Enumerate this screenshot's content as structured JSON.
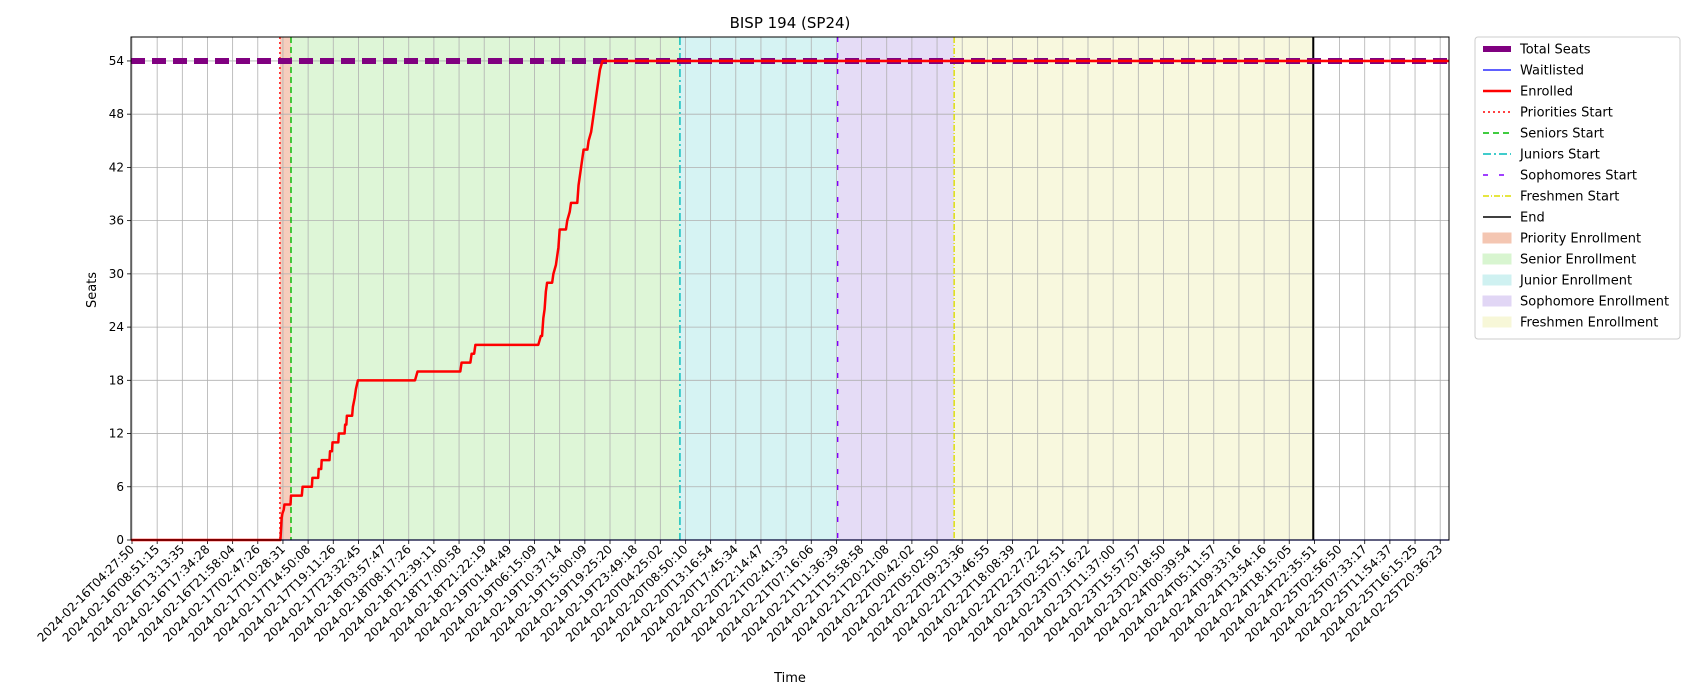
{
  "chart_data": {
    "type": "line",
    "title": "BISP 194 (SP24)",
    "xlabel": "Time",
    "ylabel": "Seats",
    "ylim": [
      0,
      56.7
    ],
    "yticks": [
      0,
      6,
      12,
      18,
      24,
      30,
      36,
      42,
      48,
      54
    ],
    "grid": true,
    "legend_position": "outside-right",
    "xticks": [
      "2024-02-16T04:27:50",
      "2024-02-16T08:51:15",
      "2024-02-16T13:13:35",
      "2024-02-16T17:34:28",
      "2024-02-16T21:58:04",
      "2024-02-17T02:47:26",
      "2024-02-17T10:28:31",
      "2024-02-17T14:50:08",
      "2024-02-17T19:11:26",
      "2024-02-17T23:32:45",
      "2024-02-18T03:57:47",
      "2024-02-18T08:17:26",
      "2024-02-18T12:39:11",
      "2024-02-18T17:00:58",
      "2024-02-18T21:22:19",
      "2024-02-19T01:44:49",
      "2024-02-19T06:15:09",
      "2024-02-19T10:37:14",
      "2024-02-19T15:00:09",
      "2024-02-19T19:25:20",
      "2024-02-19T23:49:18",
      "2024-02-20T04:25:02",
      "2024-02-20T08:50:10",
      "2024-02-20T13:16:54",
      "2024-02-20T17:45:34",
      "2024-02-20T22:14:47",
      "2024-02-21T02:41:33",
      "2024-02-21T07:16:06",
      "2024-02-21T11:36:39",
      "2024-02-21T15:58:58",
      "2024-02-21T20:21:08",
      "2024-02-22T00:42:02",
      "2024-02-22T05:02:50",
      "2024-02-22T09:23:36",
      "2024-02-22T13:46:55",
      "2024-02-22T18:08:39",
      "2024-02-22T22:27:22",
      "2024-02-23T02:52:51",
      "2024-02-23T07:16:22",
      "2024-02-23T11:37:00",
      "2024-02-23T15:57:57",
      "2024-02-23T20:18:50",
      "2024-02-24T00:39:54",
      "2024-02-24T05:11:57",
      "2024-02-24T09:33:16",
      "2024-02-24T13:54:16",
      "2024-02-24T18:15:05",
      "2024-02-24T22:35:51",
      "2024-02-25T02:56:50",
      "2024-02-25T07:33:17",
      "2024-02-25T11:54:37",
      "2024-02-25T16:15:25",
      "2024-02-25T20:36:23"
    ],
    "xrange_index": [
      -0.04,
      52.35
    ],
    "series": [
      {
        "name": "Total Seats",
        "color": "#800080",
        "style": "dashed-thick",
        "points": [
          [
            -0.04,
            54
          ],
          [
            52.35,
            54
          ]
        ]
      },
      {
        "name": "Waitlisted",
        "color": "#0000ff",
        "style": "solid-thin",
        "points": [
          [
            -0.04,
            0
          ],
          [
            52.35,
            0
          ]
        ]
      },
      {
        "name": "Enrolled",
        "color": "#ff0000",
        "style": "solid-thick",
        "points": [
          [
            -0.04,
            0
          ],
          [
            5.9,
            0
          ],
          [
            5.95,
            2.5
          ],
          [
            5.98,
            3
          ],
          [
            6.03,
            3.4
          ],
          [
            6.06,
            4
          ],
          [
            6.3,
            4
          ],
          [
            6.32,
            5
          ],
          [
            6.75,
            5
          ],
          [
            6.78,
            6
          ],
          [
            7.15,
            6
          ],
          [
            7.17,
            7
          ],
          [
            7.4,
            7
          ],
          [
            7.42,
            8
          ],
          [
            7.52,
            8
          ],
          [
            7.54,
            9
          ],
          [
            7.85,
            9
          ],
          [
            7.87,
            10
          ],
          [
            7.95,
            10
          ],
          [
            7.97,
            11
          ],
          [
            8.2,
            11
          ],
          [
            8.22,
            12
          ],
          [
            8.45,
            12
          ],
          [
            8.47,
            13
          ],
          [
            8.52,
            13
          ],
          [
            8.54,
            14
          ],
          [
            8.75,
            14
          ],
          [
            8.78,
            15
          ],
          [
            8.85,
            16
          ],
          [
            8.9,
            17
          ],
          [
            8.98,
            18
          ],
          [
            11.25,
            18
          ],
          [
            11.35,
            19
          ],
          [
            13.05,
            19
          ],
          [
            13.1,
            20
          ],
          [
            13.45,
            20
          ],
          [
            13.5,
            21
          ],
          [
            13.6,
            21
          ],
          [
            13.65,
            22
          ],
          [
            16.15,
            22
          ],
          [
            16.25,
            23
          ],
          [
            16.3,
            23
          ],
          [
            16.35,
            25
          ],
          [
            16.4,
            26
          ],
          [
            16.45,
            28
          ],
          [
            16.5,
            29
          ],
          [
            16.7,
            29
          ],
          [
            16.75,
            30
          ],
          [
            16.85,
            31
          ],
          [
            16.95,
            33
          ],
          [
            17.0,
            35
          ],
          [
            17.25,
            35
          ],
          [
            17.3,
            36
          ],
          [
            17.4,
            37
          ],
          [
            17.45,
            38
          ],
          [
            17.7,
            38
          ],
          [
            17.75,
            40
          ],
          [
            17.85,
            42
          ],
          [
            17.95,
            44
          ],
          [
            18.1,
            44
          ],
          [
            18.15,
            45
          ],
          [
            18.25,
            46
          ],
          [
            18.35,
            48
          ],
          [
            18.45,
            50
          ],
          [
            18.55,
            52
          ],
          [
            18.6,
            53
          ],
          [
            18.7,
            54
          ],
          [
            52.35,
            54
          ]
        ]
      }
    ],
    "markers": [
      {
        "name": "Priorities Start",
        "color": "#ff0000",
        "style": "dotted",
        "x_index": 5.88
      },
      {
        "name": "Seniors Start",
        "color": "#00bb00",
        "style": "dashed",
        "x_index": 6.32
      },
      {
        "name": "Juniors Start",
        "color": "#00bbbb",
        "style": "dashdot",
        "x_index": 21.78
      },
      {
        "name": "Sophomores Start",
        "color": "#8000ff",
        "style": "loosedash",
        "x_index": 28.05
      },
      {
        "name": "Freshmen Start",
        "color": "#dddd00",
        "style": "dashdot-small",
        "x_index": 32.68
      },
      {
        "name": "End",
        "color": "#000000",
        "style": "solid",
        "x_index": 46.95
      }
    ],
    "regions": [
      {
        "name": "Priority Enrollment",
        "color": "#f4c6b2",
        "from_index": 5.88,
        "to_index": 6.32
      },
      {
        "name": "Senior Enrollment",
        "color": "#d8f5d0",
        "from_index": 6.32,
        "to_index": 21.78
      },
      {
        "name": "Junior Enrollment",
        "color": "#cff1f1",
        "from_index": 21.78,
        "to_index": 28.05
      },
      {
        "name": "Sophomore Enrollment",
        "color": "#e1d6f5",
        "from_index": 28.05,
        "to_index": 32.68
      },
      {
        "name": "Freshmen Enrollment",
        "color": "#f7f7d8",
        "from_index": 32.68,
        "to_index": 46.95
      }
    ],
    "legend": [
      {
        "label": "Total Seats",
        "kind": "line",
        "color": "#800080",
        "style": "dashed-thick"
      },
      {
        "label": "Waitlisted",
        "kind": "line",
        "color": "#0000ff",
        "style": "solid-thin"
      },
      {
        "label": "Enrolled",
        "kind": "line",
        "color": "#ff0000",
        "style": "solid-thick"
      },
      {
        "label": "Priorities Start",
        "kind": "line",
        "color": "#ff0000",
        "style": "dotted"
      },
      {
        "label": "Seniors Start",
        "kind": "line",
        "color": "#00bb00",
        "style": "dashed"
      },
      {
        "label": "Juniors Start",
        "kind": "line",
        "color": "#00bbbb",
        "style": "dashdot"
      },
      {
        "label": "Sophomores Start",
        "kind": "line",
        "color": "#8000ff",
        "style": "loosedash"
      },
      {
        "label": "Freshmen Start",
        "kind": "line",
        "color": "#dddd00",
        "style": "dashdot-small"
      },
      {
        "label": "End",
        "kind": "line",
        "color": "#000000",
        "style": "solid"
      },
      {
        "label": "Priority Enrollment",
        "kind": "patch",
        "color": "#f4c6b2"
      },
      {
        "label": "Senior Enrollment",
        "kind": "patch",
        "color": "#d8f5d0"
      },
      {
        "label": "Junior Enrollment",
        "kind": "patch",
        "color": "#cff1f1"
      },
      {
        "label": "Sophomore Enrollment",
        "kind": "patch",
        "color": "#e1d6f5"
      },
      {
        "label": "Freshmen Enrollment",
        "kind": "patch",
        "color": "#f7f7d8"
      }
    ]
  }
}
